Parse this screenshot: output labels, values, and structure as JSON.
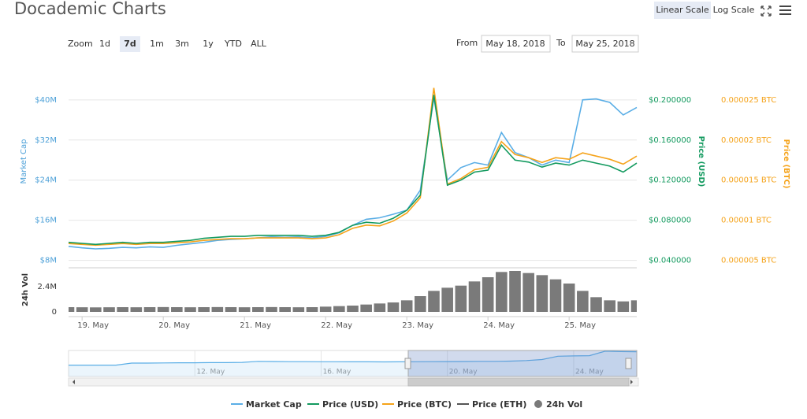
{
  "header": {
    "title": "Docademic Charts",
    "buttons": [
      "Linear Scale",
      "Log Scale"
    ]
  },
  "toolbar": {
    "zoom_label": "Zoom",
    "zoom_buttons": [
      "1d",
      "7d",
      "1m",
      "3m",
      "1y",
      "YTD",
      "ALL"
    ],
    "from_label": "From",
    "from_value": "May 18, 2018",
    "to_label": "To",
    "to_value": "May 25, 2018"
  },
  "chart_data": [
    {
      "type": "line",
      "y_label": "Market Cap",
      "y2_label": "Price (USD)",
      "y3_label": "Price (BTC)",
      "ylim": [
        7000000,
        45000000
      ],
      "yticks": [
        {
          "value": 8000000,
          "label": "$8M"
        },
        {
          "value": 16000000,
          "label": "$16M"
        },
        {
          "value": 24000000,
          "label": "$24M"
        },
        {
          "value": 32000000,
          "label": "$32M"
        },
        {
          "value": 40000000,
          "label": "$40M"
        }
      ],
      "y2lim": [
        0.035,
        0.225
      ],
      "y2ticks": [
        {
          "value": 0.04,
          "label": "$0.040000"
        },
        {
          "value": 0.08,
          "label": "$0.080000"
        },
        {
          "value": 0.12,
          "label": "$0.120000"
        },
        {
          "value": 0.16,
          "label": "$0.160000"
        },
        {
          "value": 0.2,
          "label": "$0.200000"
        }
      ],
      "y3lim": [
        4.375e-06,
        2.8125e-05
      ],
      "y3ticks": [
        {
          "value": 5e-06,
          "label": "0.000005 BTC"
        },
        {
          "value": 1e-05,
          "label": "0.00001 BTC"
        },
        {
          "value": 1.5e-05,
          "label": "0.000015 BTC"
        },
        {
          "value": 2e-05,
          "label": "0.00002 BTC"
        },
        {
          "value": 2.5e-05,
          "label": "0.000025 BTC"
        }
      ],
      "grid": true,
      "series": [
        {
          "name": "Market Cap",
          "color": "#5aaee6",
          "axis": "y",
          "values": [
            10800000,
            10500000,
            10300000,
            10400000,
            10600000,
            10500000,
            10700000,
            10600000,
            11000000,
            11300000,
            11600000,
            12000000,
            12200000,
            12300000,
            12500000,
            12700000,
            12600000,
            12700000,
            12500000,
            12800000,
            13500000,
            15000000,
            16200000,
            16500000,
            17200000,
            18000000,
            22000000,
            40500000,
            24000000,
            26500000,
            27500000,
            27000000,
            33500000,
            29500000,
            28500000,
            27000000,
            28000000,
            27500000,
            40000000,
            40200000,
            39500000,
            37000000,
            38500000
          ]
        },
        {
          "name": "Price (USD)",
          "color": "#139a5f",
          "axis": "y2",
          "values": [
            0.058,
            0.057,
            0.056,
            0.057,
            0.058,
            0.057,
            0.058,
            0.058,
            0.059,
            0.06,
            0.062,
            0.063,
            0.064,
            0.064,
            0.065,
            0.065,
            0.065,
            0.065,
            0.064,
            0.065,
            0.068,
            0.075,
            0.078,
            0.077,
            0.082,
            0.09,
            0.105,
            0.205,
            0.115,
            0.12,
            0.128,
            0.13,
            0.155,
            0.14,
            0.138,
            0.133,
            0.137,
            0.135,
            0.14,
            0.137,
            0.134,
            0.128,
            0.137
          ]
        },
        {
          "name": "Price (BTC)",
          "color": "#f5a31a",
          "axis": "y3",
          "values": [
            7.1e-06,
            7e-06,
            6.9e-06,
            7e-06,
            7.1e-06,
            7e-06,
            7.1e-06,
            7.1e-06,
            7.2e-06,
            7.3e-06,
            7.5e-06,
            7.6e-06,
            7.7e-06,
            7.7e-06,
            7.8e-06,
            7.8e-06,
            7.8e-06,
            7.8e-06,
            7.7e-06,
            7.8e-06,
            8.2e-06,
            9e-06,
            9.4e-06,
            9.3e-06,
            9.9e-06,
            1.09e-05,
            1.28e-05,
            2.65e-05,
            1.45e-05,
            1.52e-05,
            1.63e-05,
            1.66e-05,
            1.98e-05,
            1.82e-05,
            1.78e-05,
            1.72e-05,
            1.78e-05,
            1.76e-05,
            1.84e-05,
            1.8e-05,
            1.76e-05,
            1.7e-05,
            1.8e-05
          ]
        },
        {
          "name": "Price (ETH)",
          "color": "#555555",
          "axis": "y",
          "values": [
            null,
            null,
            null,
            null,
            null,
            null,
            null,
            null,
            null,
            null,
            null,
            null,
            null,
            null,
            null,
            null,
            null,
            null,
            null,
            null,
            null,
            null,
            null,
            null,
            null,
            null,
            null,
            null,
            null,
            null,
            null,
            null,
            null,
            null,
            null,
            null,
            null,
            null,
            null,
            null,
            null,
            null,
            null
          ]
        }
      ]
    },
    {
      "type": "bar",
      "y_label": "24h Vol",
      "categories": [
        null,
        "19. May",
        null,
        null,
        null,
        null,
        null,
        "20. May",
        null,
        null,
        null,
        null,
        null,
        "21. May",
        null,
        null,
        null,
        null,
        null,
        "22. May",
        null,
        null,
        null,
        null,
        null,
        "23. May",
        null,
        null,
        null,
        null,
        null,
        "24. May",
        null,
        null,
        null,
        null,
        null,
        "25. May",
        null,
        null,
        null,
        null,
        null
      ],
      "ylim": [
        0,
        4200000
      ],
      "yticks": [
        0,
        {
          "value": 2400000,
          "label": "2.4M"
        }
      ],
      "series": [
        {
          "name": "24h Vol",
          "color": "#7a7a7a",
          "values": [
            450000,
            440000,
            430000,
            440000,
            450000,
            440000,
            450000,
            460000,
            450000,
            440000,
            450000,
            460000,
            450000,
            440000,
            450000,
            460000,
            450000,
            440000,
            450000,
            500000,
            550000,
            600000,
            700000,
            800000,
            900000,
            1100000,
            1500000,
            2000000,
            2300000,
            2500000,
            2900000,
            3300000,
            3800000,
            3900000,
            3700000,
            3500000,
            3100000,
            2700000,
            2000000,
            1400000,
            1100000,
            1000000,
            1100000
          ]
        }
      ]
    },
    {
      "type": "line",
      "categories": [
        null,
        null,
        null,
        null,
        null,
        null,
        null,
        null,
        null,
        "12. May",
        null,
        null,
        null,
        null,
        null,
        null,
        null,
        "16. May",
        null,
        null,
        null,
        null,
        null,
        null,
        null,
        "20. May",
        null,
        null,
        null,
        null,
        null,
        null,
        null,
        "24. May",
        null,
        null,
        null
      ],
      "ylim": [
        -30000000,
        42000000
      ],
      "color": "#5aaee6",
      "values": [
        1500000,
        1500000,
        1500000,
        1500000,
        7000000,
        7000000,
        7500000,
        8000000,
        8000000,
        8500000,
        8500000,
        9000000,
        12000000,
        11500000,
        11000000,
        11000000,
        10800000,
        10800000,
        10600000,
        10500000,
        10400000,
        10500000,
        10700000,
        11000000,
        11200000,
        11500000,
        11800000,
        12000000,
        12500000,
        14000000,
        17000000,
        26000000,
        27000000,
        27500000,
        40000000,
        39000000,
        38500000
      ]
    }
  ]
}
